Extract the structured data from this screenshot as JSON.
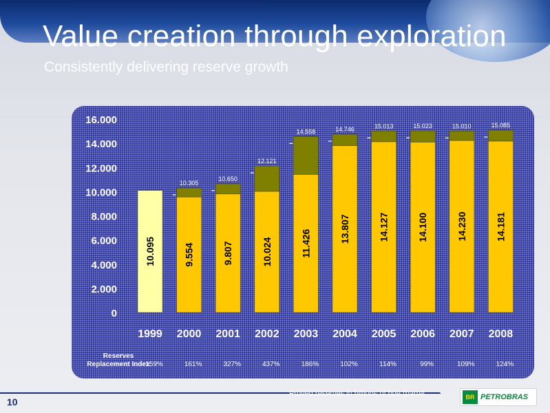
{
  "header": {
    "title": "Value creation through exploration",
    "subtitle": "Consistently delivering reserve growth"
  },
  "page_number": "10",
  "footnote": "Proved reserves in billions of boe (barrel",
  "logo": {
    "mark": "BR",
    "text": "PETROBRAS"
  },
  "colors": {
    "panel": "#2e36a0",
    "first_bar": "#ffffa6",
    "bar_base": "#ffc800",
    "bar_top": "#808000",
    "label_text": "#ffffff"
  },
  "chart_data": {
    "type": "bar",
    "categories": [
      "1999",
      "2000",
      "2001",
      "2002",
      "2003",
      "2004",
      "2005",
      "2006",
      "2007",
      "2008"
    ],
    "series": [
      {
        "values": [
          10.095,
          9.554,
          9.807,
          10.024,
          11.426,
          13.807,
          14.127,
          14.1,
          14.23,
          14.181
        ]
      },
      {
        "values": [
          0,
          0.751,
          0.843,
          2.097,
          3.132,
          0.939,
          0.886,
          0.923,
          0.78,
          0.904
        ]
      }
    ],
    "base_labels": [
      "10.095",
      "9.554",
      "9.807",
      "10.024",
      "11.426",
      "13.807",
      "14.127",
      "14.100",
      "14.230",
      "14.181"
    ],
    "total_labels": [
      "",
      "10.305",
      "10.650",
      "12.121",
      "14.558",
      "14.746",
      "15.013",
      "15.023",
      "15.010",
      "15.085"
    ],
    "y_ticks": [
      "0",
      "2.000",
      "4.000",
      "6.000",
      "8.000",
      "10.000",
      "12.000",
      "14.000",
      "16.000"
    ],
    "ylim": [
      0,
      16
    ],
    "reserves_replacement": {
      "label_line1": "Reserves",
      "label_line2": "Replacement Index",
      "values": [
        "159%",
        "161%",
        "327%",
        "437%",
        "186%",
        "102%",
        "114%",
        "99%",
        "109%",
        "124%"
      ]
    }
  }
}
